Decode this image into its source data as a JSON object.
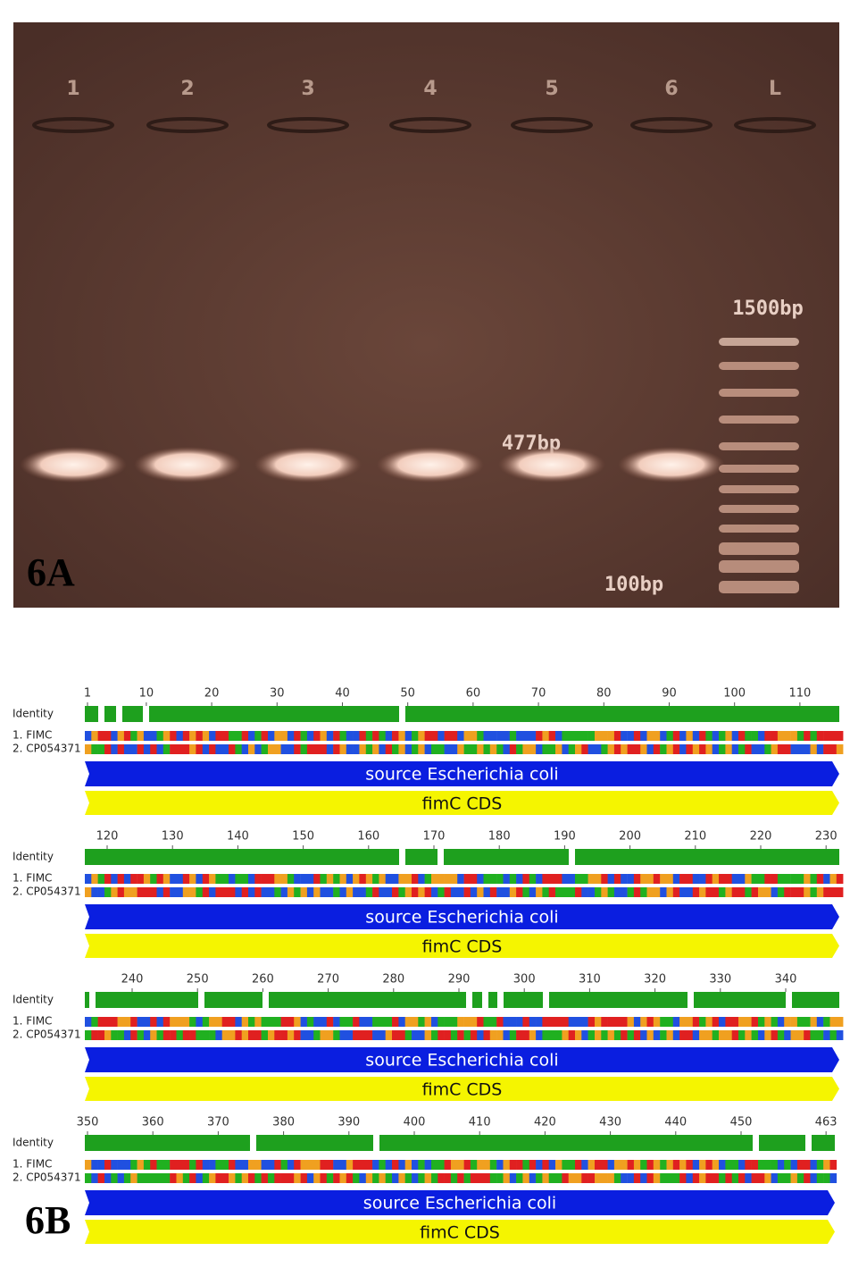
{
  "gel": {
    "lanes": [
      "1",
      "2",
      "3",
      "4",
      "5",
      "6",
      "L"
    ],
    "ladder_top": "1500bp",
    "band": "477bp",
    "ladder_bottom": "100bp",
    "panel": "6A"
  },
  "alignment": {
    "panel": "6B",
    "identity_label": "Identity",
    "row_labels": [
      "1. FIMC",
      "2. CP054371"
    ],
    "source_feature": "source Escherichia coli",
    "cds_feature": "fimC CDS",
    "blocks": [
      {
        "ruler": [
          1,
          10,
          20,
          30,
          40,
          50,
          60,
          70,
          80,
          90,
          100,
          110
        ]
      },
      {
        "ruler": [
          120,
          130,
          140,
          150,
          160,
          170,
          180,
          190,
          200,
          210,
          220,
          230
        ]
      },
      {
        "ruler": [
          240,
          250,
          260,
          270,
          280,
          290,
          300,
          310,
          320,
          330,
          340
        ]
      },
      {
        "ruler": [
          350,
          360,
          370,
          380,
          390,
          400,
          410,
          420,
          430,
          440,
          450,
          463
        ]
      }
    ]
  }
}
